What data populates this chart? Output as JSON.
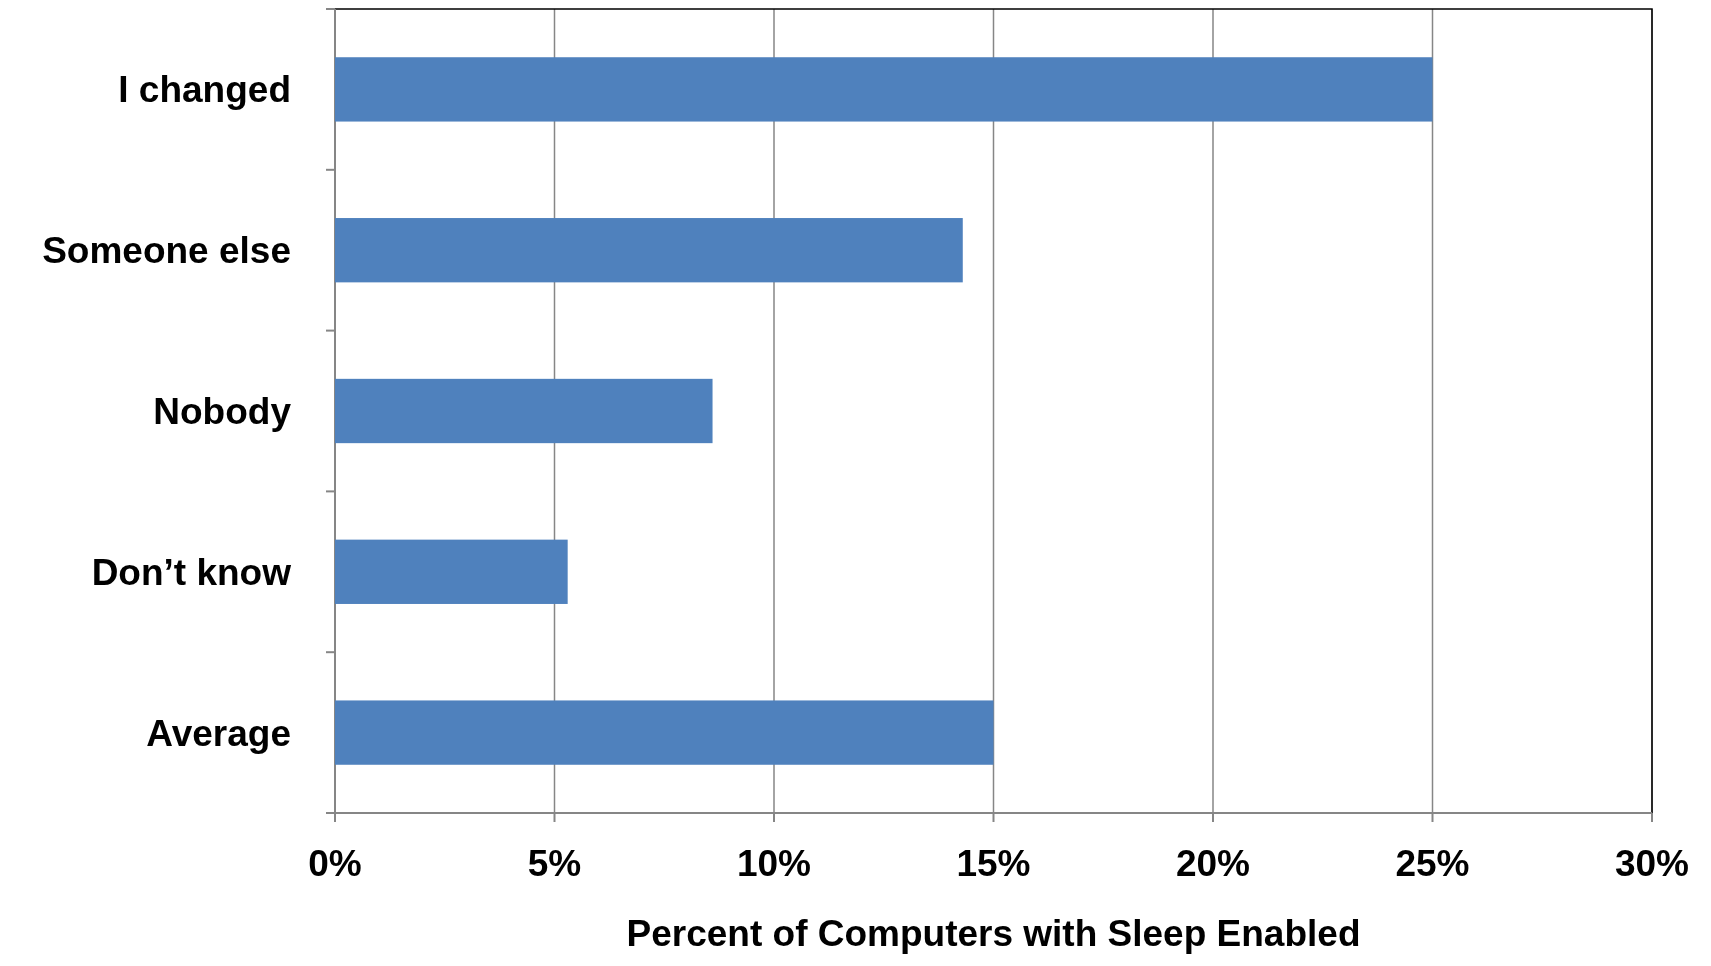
{
  "chart_data": {
    "type": "bar",
    "orientation": "horizontal",
    "xlabel": "Percent of Computers with Sleep Enabled",
    "categories": [
      "I changed",
      "Someone else",
      "Nobody",
      "Don’t know",
      "Average"
    ],
    "values": [
      25,
      14.3,
      8.6,
      5.3,
      15
    ],
    "color": "#4f81bd",
    "xlim": [
      0,
      30
    ],
    "xticks": [
      {
        "value": 0,
        "label": "0%"
      },
      {
        "value": 5,
        "label": "5%"
      },
      {
        "value": 10,
        "label": "10%"
      },
      {
        "value": 15,
        "label": "15%"
      },
      {
        "value": 20,
        "label": "20%"
      },
      {
        "value": 25,
        "label": "25%"
      },
      {
        "value": 30,
        "label": "30%"
      }
    ],
    "grid": "x"
  }
}
